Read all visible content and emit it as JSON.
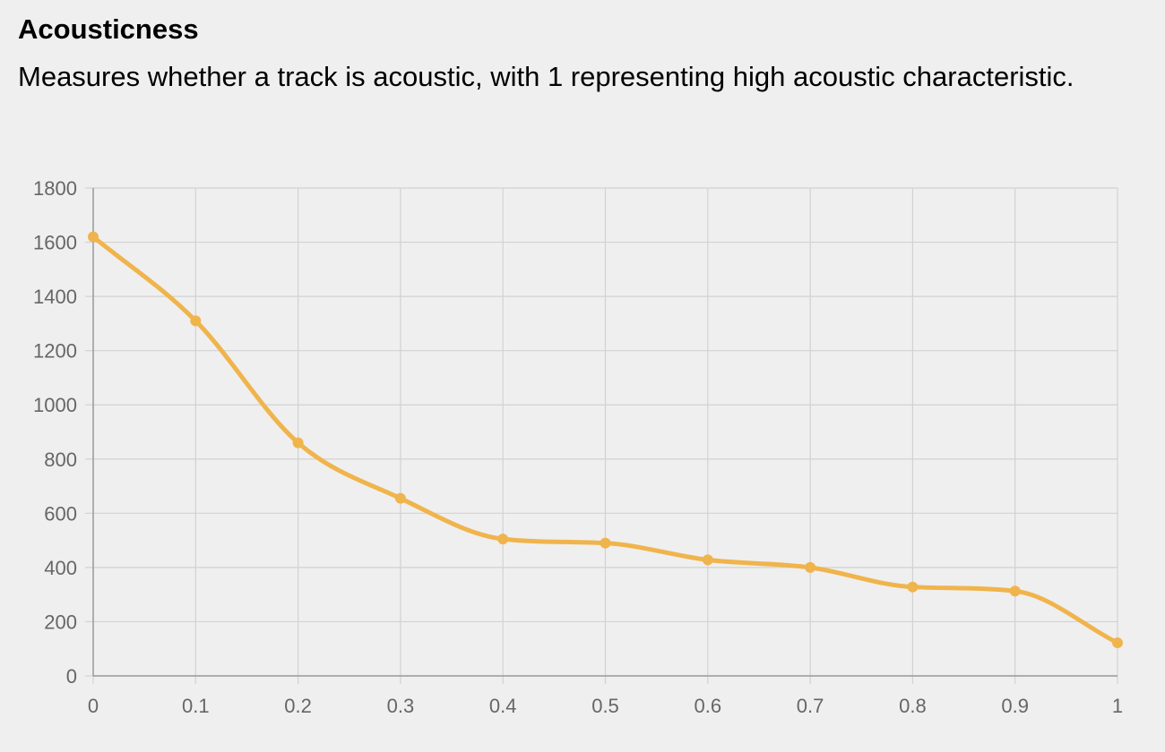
{
  "header": {
    "title": "Acousticness",
    "description": "Measures whether a track is acoustic, with 1 representing high acoustic characteristic."
  },
  "chart_data": {
    "type": "line",
    "title": "",
    "xlabel": "",
    "ylabel": "",
    "x": [
      0,
      0.1,
      0.2,
      0.3,
      0.4,
      0.5,
      0.6,
      0.7,
      0.8,
      0.9,
      1
    ],
    "series": [
      {
        "values": [
          1620,
          1310,
          860,
          655,
          505,
          490,
          428,
          400,
          328,
          313,
          122
        ],
        "color": "#f0b44c"
      }
    ],
    "xlim": [
      0,
      1
    ],
    "ylim": [
      0,
      1800
    ],
    "x_ticks": [
      "0",
      "0.1",
      "0.2",
      "0.3",
      "0.4",
      "0.5",
      "0.6",
      "0.7",
      "0.8",
      "0.9",
      "1"
    ],
    "y_ticks": [
      "0",
      "200",
      "400",
      "600",
      "800",
      "1000",
      "1200",
      "1400",
      "1600",
      "1800"
    ],
    "grid": true,
    "smooth": true,
    "markers": true
  },
  "colors": {
    "background": "#efefef",
    "line": "#f0b44c",
    "grid": "#d2d2d2",
    "axis": "#999999",
    "tick_text": "#666666"
  }
}
